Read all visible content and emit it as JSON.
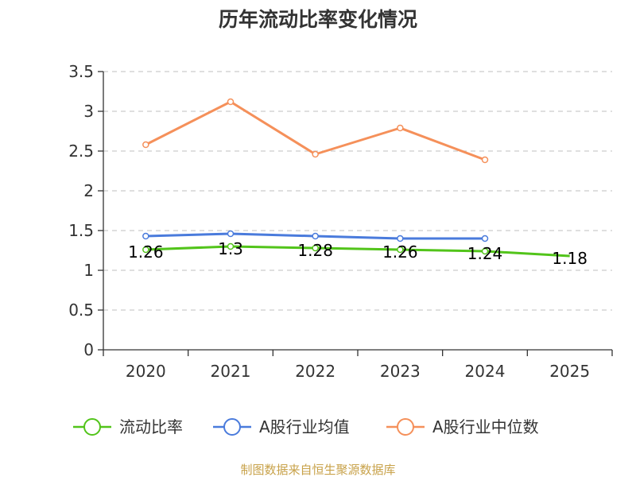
{
  "chart_data": {
    "type": "line",
    "title": "历年流动比率变化情况",
    "categories": [
      "2020",
      "2021",
      "2022",
      "2023",
      "2024",
      "2025"
    ],
    "ylim": [
      0,
      3.5
    ],
    "yticks": [
      "0",
      "0.5",
      "1",
      "1.5",
      "2",
      "2.5",
      "3",
      "3.5"
    ],
    "grid": true,
    "legend_position": "bottom",
    "series": [
      {
        "name": "流动比率",
        "color": "#52c41a",
        "values": [
          1.26,
          1.3,
          1.28,
          1.26,
          1.24,
          1.18
        ],
        "labels": [
          "1.26",
          "1.3",
          "1.28",
          "1.26",
          "1.24",
          "1.18"
        ],
        "show_markers": [
          true,
          true,
          true,
          true,
          true,
          false
        ]
      },
      {
        "name": "A股行业均值",
        "color": "#4a7bdc",
        "values": [
          1.43,
          1.46,
          1.43,
          1.4,
          1.4,
          null
        ],
        "show_markers": [
          true,
          true,
          true,
          true,
          true,
          false
        ]
      },
      {
        "name": "A股行业中位数",
        "color": "#f5905a",
        "values": [
          2.58,
          3.12,
          2.46,
          2.79,
          2.39,
          null
        ],
        "show_markers": [
          true,
          true,
          true,
          true,
          true,
          false
        ]
      }
    ],
    "source": "制图数据来自恒生聚源数据库"
  }
}
